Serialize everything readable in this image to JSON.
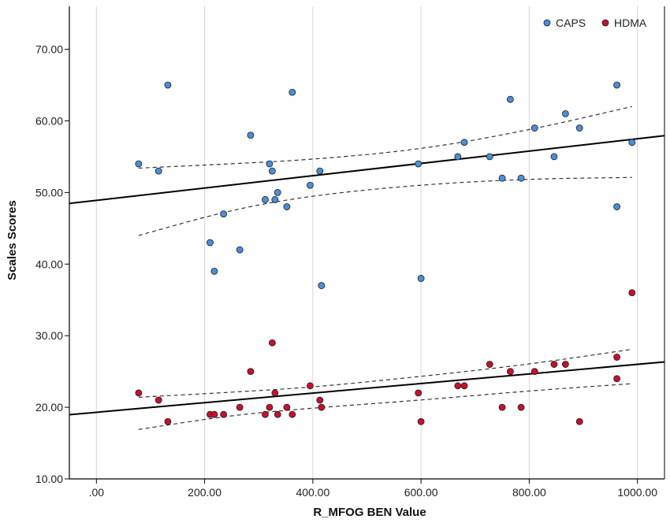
{
  "chart_data": {
    "type": "scatter",
    "title": "",
    "xlabel": "R_MFOG BEN Value",
    "ylabel": "Scales Scores",
    "xlim": [
      -50,
      1050
    ],
    "ylim": [
      10,
      76
    ],
    "x_ticks": [
      0,
      200,
      400,
      600,
      800,
      1000
    ],
    "x_tick_labels": [
      ".00",
      "200.00",
      "400.00",
      "600.00",
      "800.00",
      "1000.00"
    ],
    "y_ticks": [
      10,
      20,
      30,
      40,
      50,
      60,
      70
    ],
    "y_tick_labels": [
      "10.00",
      "20.00",
      "30.00",
      "40.00",
      "50.00",
      "60.00",
      "70.00"
    ],
    "grid": "vertical",
    "legend_position": "top-right",
    "series": [
      {
        "name": "CAPS",
        "color": "#4a8fd8",
        "points": [
          [
            78,
            54
          ],
          [
            115,
            53
          ],
          [
            132,
            65
          ],
          [
            210,
            43
          ],
          [
            218,
            39
          ],
          [
            235,
            47
          ],
          [
            265,
            42
          ],
          [
            285,
            58
          ],
          [
            312,
            49
          ],
          [
            320,
            54
          ],
          [
            325,
            53
          ],
          [
            330,
            49
          ],
          [
            335,
            50
          ],
          [
            352,
            48
          ],
          [
            362,
            64
          ],
          [
            395,
            51
          ],
          [
            413,
            53
          ],
          [
            416,
            37
          ],
          [
            595,
            54
          ],
          [
            600,
            38
          ],
          [
            668,
            55
          ],
          [
            680,
            57
          ],
          [
            727,
            55
          ],
          [
            750,
            52
          ],
          [
            765,
            63
          ],
          [
            785,
            52
          ],
          [
            810,
            59
          ],
          [
            846,
            55
          ],
          [
            867,
            61
          ],
          [
            893,
            59
          ],
          [
            962,
            48
          ],
          [
            962,
            65
          ],
          [
            990,
            57
          ]
        ],
        "fit": {
          "intercept": 48.9,
          "slope": 0.0086
        },
        "ci_lower": [
          [
            78,
            44.0
          ],
          [
            250,
            47.6
          ],
          [
            400,
            49.6
          ],
          [
            600,
            51.1
          ],
          [
            800,
            51.9
          ],
          [
            990,
            52.1
          ]
        ],
        "ci_upper": [
          [
            78,
            53.4
          ],
          [
            250,
            54.0
          ],
          [
            400,
            54.6
          ],
          [
            600,
            56.0
          ],
          [
            800,
            58.7
          ],
          [
            990,
            62.0
          ]
        ]
      },
      {
        "name": "HDMA",
        "color": "#c8102e",
        "points": [
          [
            78,
            22
          ],
          [
            115,
            21
          ],
          [
            132,
            18
          ],
          [
            210,
            19
          ],
          [
            218,
            19
          ],
          [
            235,
            19
          ],
          [
            265,
            20
          ],
          [
            285,
            25
          ],
          [
            312,
            19
          ],
          [
            320,
            20
          ],
          [
            325,
            29
          ],
          [
            330,
            22
          ],
          [
            335,
            19
          ],
          [
            352,
            20
          ],
          [
            362,
            19
          ],
          [
            395,
            23
          ],
          [
            413,
            21
          ],
          [
            416,
            20
          ],
          [
            595,
            22
          ],
          [
            600,
            18
          ],
          [
            668,
            23
          ],
          [
            680,
            23
          ],
          [
            727,
            26
          ],
          [
            750,
            20
          ],
          [
            765,
            25
          ],
          [
            785,
            20
          ],
          [
            810,
            25
          ],
          [
            846,
            26
          ],
          [
            867,
            26
          ],
          [
            893,
            18
          ],
          [
            962,
            24
          ],
          [
            962,
            27
          ],
          [
            990,
            36
          ]
        ],
        "fit": {
          "intercept": 19.3,
          "slope": 0.0067
        },
        "ci_lower": [
          [
            78,
            16.9
          ],
          [
            250,
            18.9
          ],
          [
            400,
            19.9
          ],
          [
            600,
            21.0
          ],
          [
            800,
            22.3
          ],
          [
            990,
            23.3
          ]
        ],
        "ci_upper": [
          [
            78,
            21.4
          ],
          [
            250,
            22.1
          ],
          [
            400,
            22.8
          ],
          [
            600,
            24.3
          ],
          [
            800,
            26.0
          ],
          [
            990,
            28.1
          ]
        ]
      }
    ]
  }
}
